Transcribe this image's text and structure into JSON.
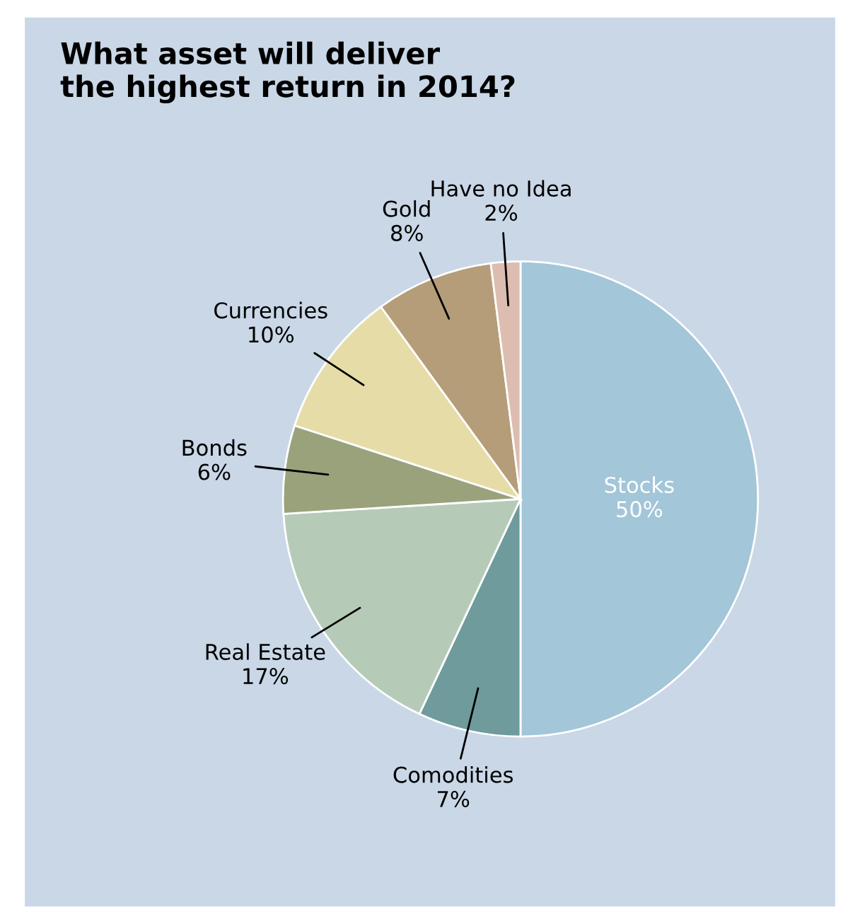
{
  "chart_data": {
    "type": "pie",
    "title": "What asset will deliver\nthe highest return in 2014?",
    "categories": [
      "Stocks",
      "Comodities",
      "Real Estate",
      "Bonds",
      "Currencies",
      "Gold",
      "Have no Idea"
    ],
    "values": [
      50,
      7,
      17,
      6,
      10,
      8,
      2
    ],
    "colors": [
      "#a3c6d8",
      "#6f9b9c",
      "#b6cab8",
      "#9aa27c",
      "#e6dca8",
      "#b49d78",
      "#ddbdb0"
    ],
    "value_labels": [
      "50%",
      "7%",
      "17%",
      "6%",
      "10%",
      "8%",
      "2%"
    ]
  }
}
